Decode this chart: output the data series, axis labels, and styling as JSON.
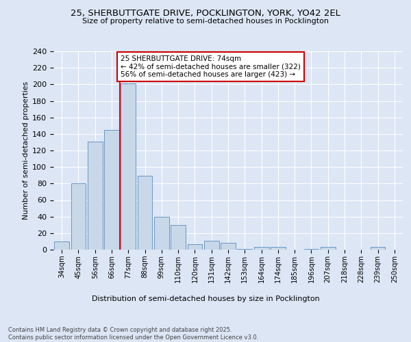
{
  "title1": "25, SHERBUTTGATE DRIVE, POCKLINGTON, YORK, YO42 2EL",
  "title2": "Size of property relative to semi-detached houses in Pocklington",
  "xlabel": "Distribution of semi-detached houses by size in Pocklington",
  "ylabel": "Number of semi-detached properties",
  "categories": [
    "34sqm",
    "45sqm",
    "56sqm",
    "66sqm",
    "77sqm",
    "88sqm",
    "99sqm",
    "110sqm",
    "120sqm",
    "131sqm",
    "142sqm",
    "153sqm",
    "164sqm",
    "174sqm",
    "185sqm",
    "196sqm",
    "207sqm",
    "218sqm",
    "228sqm",
    "239sqm",
    "250sqm"
  ],
  "values": [
    10,
    80,
    131,
    145,
    201,
    89,
    40,
    30,
    7,
    11,
    8,
    1,
    3,
    3,
    0,
    1,
    3,
    0,
    0,
    3,
    0
  ],
  "bar_color": "#c8d8e8",
  "bar_edge_color": "#5a8abf",
  "red_line_index": 4,
  "annotation_text": "25 SHERBUTTGATE DRIVE: 74sqm\n← 42% of semi-detached houses are smaller (322)\n56% of semi-detached houses are larger (423) →",
  "annotation_box_color": "#ffffff",
  "annotation_box_edge": "#cc0000",
  "footer_text": "Contains HM Land Registry data © Crown copyright and database right 2025.\nContains public sector information licensed under the Open Government Licence v3.0.",
  "ylim": [
    0,
    240
  ],
  "bg_color": "#dce6f5",
  "plot_bg_color": "#dce6f5"
}
